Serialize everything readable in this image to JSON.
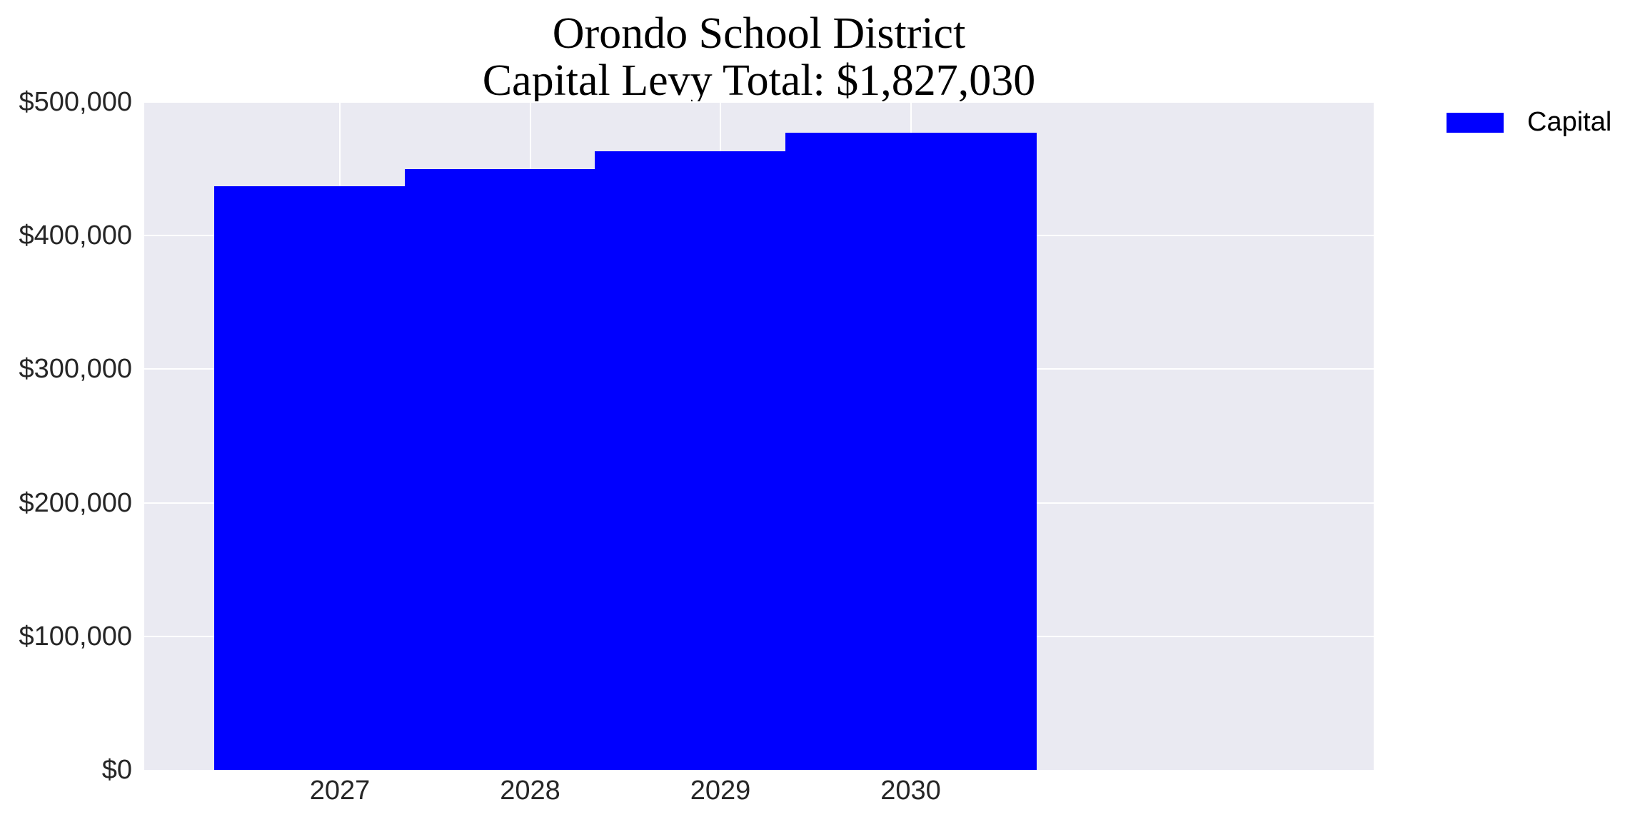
{
  "chart_data": {
    "type": "bar",
    "title": "Orondo School District",
    "subtitle": "Capital Levy Total: $1,827,030",
    "categories": [
      "2027",
      "2028",
      "2029",
      "2030"
    ],
    "series": [
      {
        "name": "Capital",
        "color": "#0000ff",
        "values": [
          436710,
          449811,
          463305,
          477204
        ]
      }
    ],
    "xlabel": "",
    "ylabel": "",
    "ylim": [
      0,
      500000
    ],
    "yticks": [
      0,
      100000,
      200000,
      300000,
      400000,
      500000
    ],
    "ytick_labels": [
      "$0",
      "$100,000",
      "$200,000",
      "$300,000",
      "$400,000",
      "$500,000"
    ],
    "grid": true,
    "legend_position": "upper right, outside plot"
  },
  "title": {
    "line1": "Orondo School District",
    "line2": "Capital Levy Total: $1,827,030"
  },
  "yaxis": {
    "ticks": [
      "$0",
      "$100,000",
      "$200,000",
      "$300,000",
      "$400,000",
      "$500,000"
    ]
  },
  "xaxis": {
    "ticks": [
      "2027",
      "2028",
      "2029",
      "2030"
    ]
  },
  "legend": {
    "items": [
      {
        "label": "Capital",
        "color": "#0000ff"
      }
    ]
  },
  "colors": {
    "plot_background": "#eaeaf2",
    "grid": "#ffffff",
    "bar": "#0000ff",
    "tick_text": "#262626"
  }
}
